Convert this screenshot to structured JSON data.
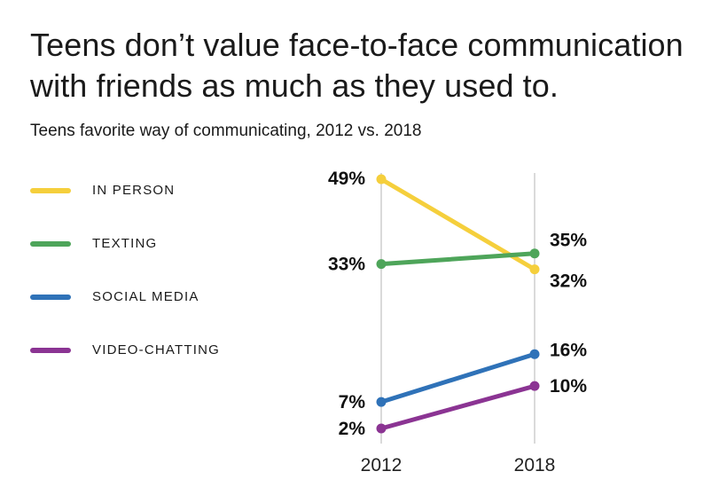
{
  "chart_data": {
    "type": "line",
    "title": "Teens don’t value face-to-face communication with friends as much as they used to.",
    "subtitle": "Teens favorite way of communicating, 2012 vs. 2018",
    "categories": [
      "2012",
      "2018"
    ],
    "ylim": [
      0,
      50
    ],
    "xlabel": "",
    "ylabel": "",
    "series": [
      {
        "name": "IN PERSON",
        "values": [
          49,
          32
        ],
        "labels": [
          "49%",
          "32%"
        ],
        "color": "#f5cf3c"
      },
      {
        "name": "TEXTING",
        "values": [
          33,
          35
        ],
        "labels": [
          "33%",
          "35%"
        ],
        "color": "#4ea55a"
      },
      {
        "name": "SOCIAL MEDIA",
        "values": [
          7,
          16
        ],
        "labels": [
          "7%",
          "16%"
        ],
        "color": "#2f72b8"
      },
      {
        "name": "VIDEO-CHATTING",
        "values": [
          2,
          10
        ],
        "labels": [
          "2%",
          "10%"
        ],
        "color": "#8b3493"
      }
    ]
  }
}
